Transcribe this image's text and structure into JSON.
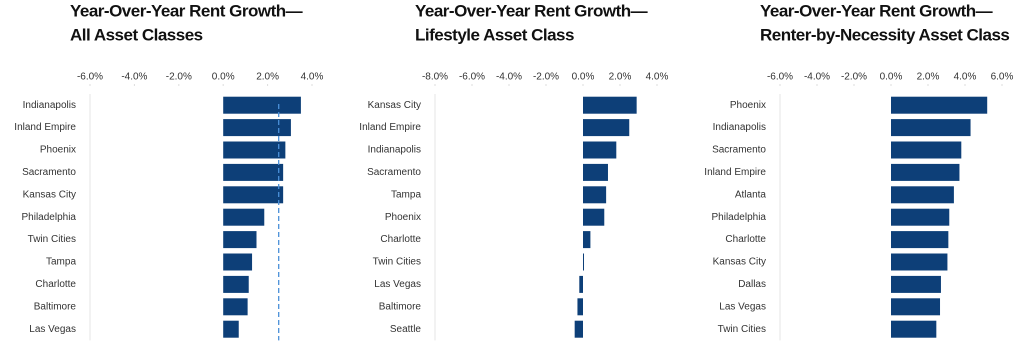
{
  "chart_data": [
    {
      "type": "barh",
      "title": [
        "Year-Over-Year Rent Growth—",
        "All Asset Classes"
      ],
      "categories": [
        "Indianapolis",
        "Inland Empire",
        "Phoenix",
        "Sacramento",
        "Kansas City",
        "Philadelphia",
        "Twin Cities",
        "Tampa",
        "Charlotte",
        "Baltimore",
        "Las Vegas"
      ],
      "values": [
        3.5,
        3.05,
        2.8,
        2.7,
        2.7,
        1.85,
        1.5,
        1.3,
        1.15,
        1.1,
        0.7
      ],
      "reference_value": 2.5,
      "color": "#0d3f78",
      "xlim": [
        -6,
        4
      ],
      "xticks": [
        {
          "value": -6,
          "label": "-6.0%"
        },
        {
          "value": -4,
          "label": "-4.0%"
        },
        {
          "value": -2,
          "label": "-2.0%"
        },
        {
          "value": 0,
          "label": "0.0%"
        },
        {
          "value": 2,
          "label": "2.0%"
        },
        {
          "value": 4,
          "label": "4.0%"
        }
      ]
    },
    {
      "type": "barh",
      "title": [
        "Year-Over-Year Rent Growth—",
        "Lifestyle Asset Class"
      ],
      "categories": [
        "Kansas City",
        "Inland Empire",
        "Indianapolis",
        "Sacramento",
        "Tampa",
        "Phoenix",
        "Charlotte",
        "Twin Cities",
        "Las Vegas",
        "Baltimore",
        "Seattle"
      ],
      "values": [
        2.9,
        2.5,
        1.8,
        1.35,
        1.25,
        1.15,
        0.4,
        0.05,
        -0.2,
        -0.3,
        -0.45
      ],
      "color": "#0d3f78",
      "xlim": [
        -8,
        4
      ],
      "xticks": [
        {
          "value": -8,
          "label": "-8.0%"
        },
        {
          "value": -6,
          "label": "-6.0%"
        },
        {
          "value": -4,
          "label": "-4.0%"
        },
        {
          "value": -2,
          "label": "-2.0%"
        },
        {
          "value": 0,
          "label": "0.0%"
        },
        {
          "value": 2,
          "label": "2.0%"
        },
        {
          "value": 4,
          "label": "4.0%"
        }
      ]
    },
    {
      "type": "barh",
      "title": [
        "Year-Over-Year Rent Growth—",
        "Renter-by-Necessity Asset Class"
      ],
      "categories": [
        "Phoenix",
        "Indianapolis",
        "Sacramento",
        "Inland Empire",
        "Atlanta",
        "Philadelphia",
        "Charlotte",
        "Kansas City",
        "Dallas",
        "Las Vegas",
        "Twin Cities"
      ],
      "values": [
        5.2,
        4.3,
        3.8,
        3.7,
        3.4,
        3.15,
        3.1,
        3.05,
        2.7,
        2.65,
        2.45
      ],
      "color": "#0d3f78",
      "xlim": [
        -6,
        6
      ],
      "xticks": [
        {
          "value": -6,
          "label": "-6.0%"
        },
        {
          "value": -4,
          "label": "-4.0%"
        },
        {
          "value": -2,
          "label": "-2.0%"
        },
        {
          "value": 0,
          "label": "0.0%"
        },
        {
          "value": 2,
          "label": "2.0%"
        },
        {
          "value": 4,
          "label": "4.0%"
        },
        {
          "value": 6,
          "label": "6.0%"
        }
      ]
    }
  ]
}
